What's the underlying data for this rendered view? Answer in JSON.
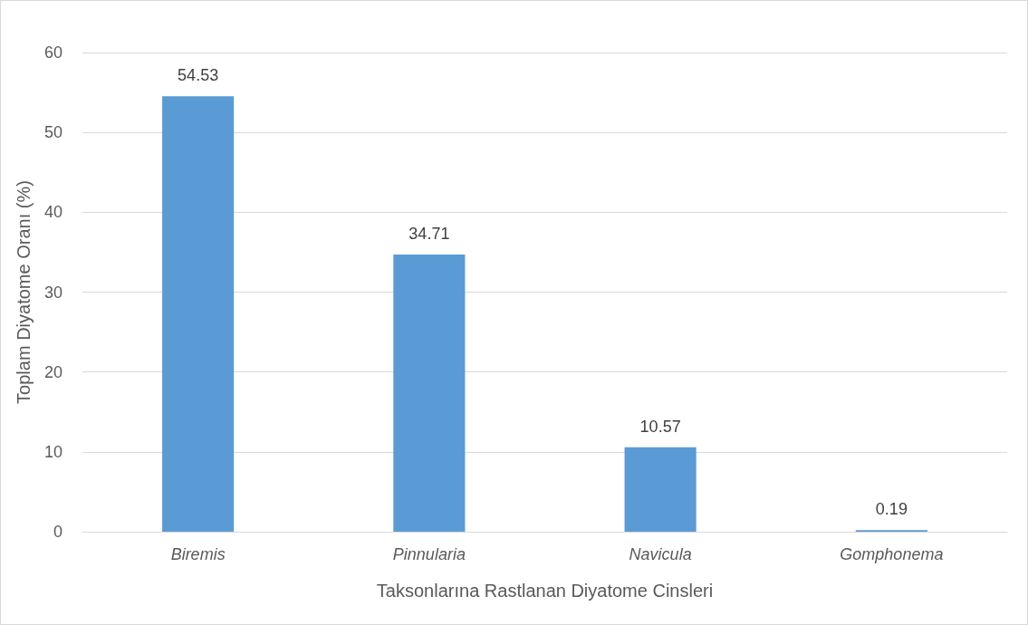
{
  "chart_data": {
    "type": "bar",
    "xlabel": "Taksonlarına Rastlanan Diyatome Cinsleri",
    "ylabel": "Toplam Diyatome Oranı (%)",
    "categories": [
      "Biremis",
      "Pinnularia",
      "Navicula",
      "Gomphonema"
    ],
    "values": [
      54.53,
      34.71,
      10.57,
      0.19
    ],
    "color": "#5b9bd5",
    "ylim": [
      0,
      60
    ],
    "yticks": [
      0,
      10,
      20,
      30,
      40,
      50,
      60
    ],
    "grid": "y",
    "data_labels": true
  }
}
